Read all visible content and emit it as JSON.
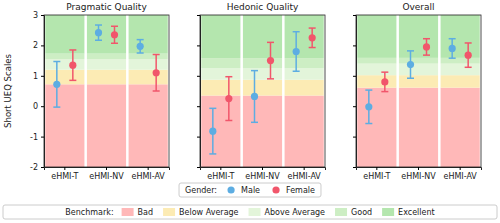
{
  "chart_data": [
    {
      "type": "scatter",
      "title": "Pragmatic Quality",
      "y_label": "Short UEQ Scales",
      "categories": [
        "eHMI-T",
        "eHMI-NV",
        "eHMI-AV"
      ],
      "series": [
        {
          "name": "Male",
          "color": "#5dade2",
          "marker": "circle",
          "values": [
            0.72,
            2.42,
            1.97
          ],
          "errors": [
            0.75,
            0.25,
            0.22
          ]
        },
        {
          "name": "Female",
          "color": "#f1566b",
          "marker": "circle",
          "values": [
            1.35,
            2.35,
            1.1
          ],
          "errors": [
            0.5,
            0.28,
            0.6
          ]
        }
      ],
      "ylim": [
        -2,
        3
      ],
      "yticks": [
        -2,
        -1,
        0,
        1,
        2,
        3
      ],
      "legend": "bottom",
      "legend_title": "Gender:",
      "benchmark_title": "Benchmark:",
      "benchmark_labels": [
        "Bad",
        "Below Average",
        "Above Average",
        "Good",
        "Excellent"
      ],
      "colors": [
        "#ffb8b8",
        "#fcebb4",
        "#e3f5da",
        "#cdeec4",
        "#b4e6ae"
      ],
      "benchmark_thresholds": [
        0.72,
        1.2,
        1.55,
        1.73
      ]
    },
    {
      "type": "scatter",
      "title": "Hedonic Quality",
      "categories": [
        "eHMI-T",
        "eHMI-NV",
        "eHMI-AV"
      ],
      "series": [
        {
          "name": "Male",
          "color": "#5dade2",
          "marker": "circle",
          "values": [
            -0.82,
            0.32,
            1.8
          ],
          "errors": [
            0.75,
            0.85,
            0.65
          ]
        },
        {
          "name": "Female",
          "color": "#f1566b",
          "marker": "circle",
          "values": [
            0.25,
            1.5,
            2.25
          ],
          "errors": [
            0.72,
            0.6,
            0.32
          ]
        }
      ],
      "ylim": [
        -2,
        3
      ],
      "yticks": [
        -2,
        -1,
        0,
        1,
        2,
        3
      ],
      "tick_labels": "x",
      "benchmark_thresholds": [
        0.35,
        0.87,
        1.25,
        1.58
      ]
    },
    {
      "type": "scatter",
      "title": "Overall",
      "categories": [
        "eHMI-T",
        "eHMI-NV",
        "eHMI-AV"
      ],
      "series": [
        {
          "name": "Male",
          "color": "#5dade2",
          "marker": "circle",
          "values": [
            -0.02,
            1.37,
            1.9
          ],
          "errors": [
            0.55,
            0.45,
            0.32
          ]
        },
        {
          "name": "Female",
          "color": "#f1566b",
          "marker": "circle",
          "values": [
            0.8,
            1.95,
            1.68
          ],
          "errors": [
            0.32,
            0.27,
            0.4
          ]
        }
      ],
      "ylim": [
        -2,
        3
      ],
      "yticks": [
        -2,
        -1,
        0,
        1,
        2,
        3
      ],
      "tick_labels": "x",
      "benchmark_thresholds": [
        0.61,
        1.02,
        1.4,
        1.59
      ]
    }
  ]
}
